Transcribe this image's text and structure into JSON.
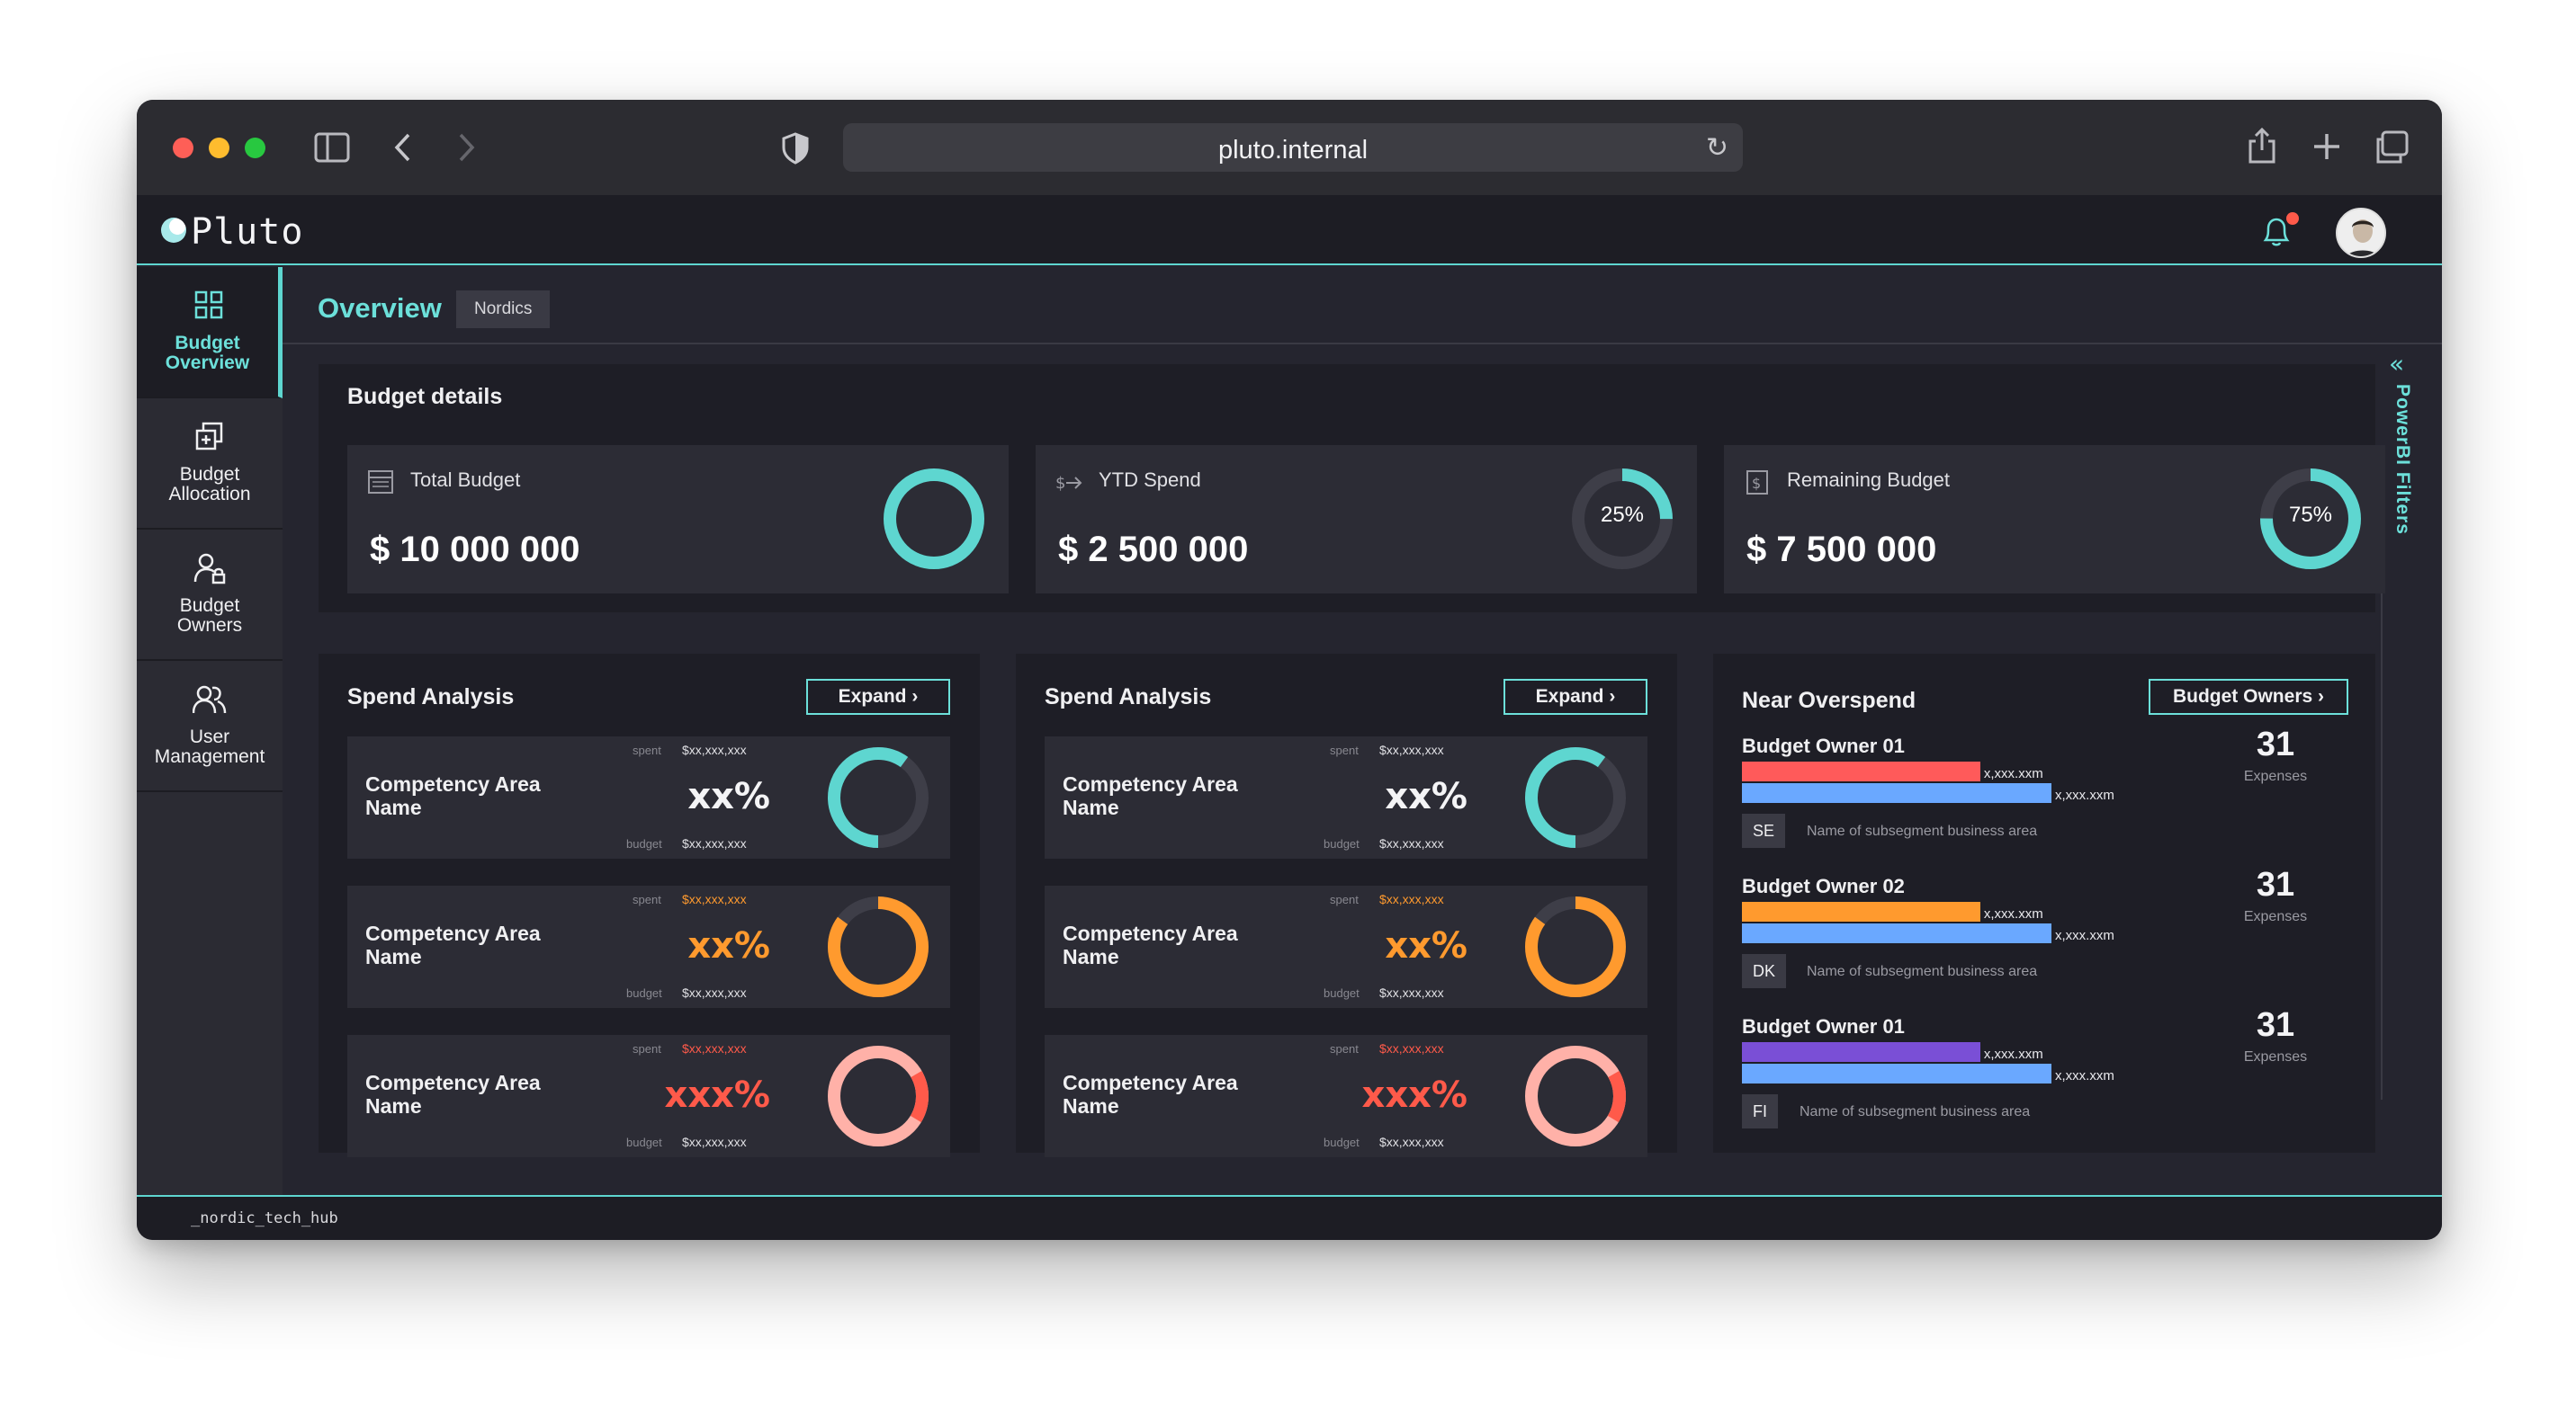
{
  "browser": {
    "url": "pluto.internal",
    "icons": [
      "sidebar-toggle-icon",
      "back-icon",
      "forward-icon",
      "shield-icon",
      "reload-icon",
      "share-icon",
      "new-tab-icon",
      "tabs-icon"
    ]
  },
  "app": {
    "name": "Pluto",
    "footer": "_nordic_tech_hub",
    "notification_dot_color": "#ff5a4a"
  },
  "sidebar": {
    "items": [
      {
        "label": "Budget\nOverview",
        "icon": "grid-icon",
        "active": true
      },
      {
        "label": "Budget\nAllocation",
        "icon": "stack-icon",
        "active": false
      },
      {
        "label": "Budget\nOwners",
        "icon": "user-lock-icon",
        "active": false
      },
      {
        "label": "User\nManagement",
        "icon": "users-icon",
        "active": false
      }
    ]
  },
  "page": {
    "title": "Overview",
    "region": "Nordics",
    "filters_label": "PowerBI Filters"
  },
  "budget_details": {
    "title": "Budget details",
    "kpis": [
      {
        "label": "Total Budget",
        "value": "$ 10 000 000",
        "ring_fraction": 1.0,
        "pct_label": ""
      },
      {
        "label": "YTD Spend",
        "value": "$ 2 500 000",
        "ring_fraction": 0.25,
        "pct_label": "25%"
      },
      {
        "label": "Remaining Budget",
        "value": "$ 7 500 000",
        "ring_fraction": 0.75,
        "pct_label": "75%"
      }
    ]
  },
  "spend_analysis": [
    {
      "title": "Spend Analysis",
      "expand_label": "Expand",
      "rows": [
        {
          "name": "Competency Area\nName",
          "pct": "xx%",
          "spent_label": "spent",
          "spent": "$xx,xxx,xxx",
          "budget_label": "budget",
          "budget": "$xx,xxx,xxx",
          "fraction": 0.6,
          "color": "#5ed6d0",
          "pct_color": "#f4f4f6",
          "spent_color": "#e0e0e4"
        },
        {
          "name": "Competency Area\nName",
          "pct": "xx%",
          "spent_label": "spent",
          "spent": "$xx,xxx,xxx",
          "budget_label": "budget",
          "budget": "$xx,xxx,xxx",
          "fraction": 0.85,
          "color": "#ff9a2e",
          "pct_color": "#ff9a2e",
          "spent_color": "#ff9a2e"
        },
        {
          "name": "Competency Area\nName",
          "pct": "xxx%",
          "spent_label": "spent",
          "spent": "$xx,xxx,xxx",
          "budget_label": "budget",
          "budget": "$xx,xxx,xxx",
          "fraction": 1.0,
          "color": "#ffb1a8",
          "overflow_color": "#ff5a4a",
          "pct_color": "#ff5a4a",
          "spent_color": "#ff5a4a"
        }
      ]
    },
    {
      "title": "Spend Analysis",
      "expand_label": "Expand",
      "rows": [
        {
          "name": "Competency Area\nName",
          "pct": "xx%",
          "spent_label": "spent",
          "spent": "$xx,xxx,xxx",
          "budget_label": "budget",
          "budget": "$xx,xxx,xxx",
          "fraction": 0.6,
          "color": "#5ed6d0",
          "pct_color": "#f4f4f6",
          "spent_color": "#e0e0e4"
        },
        {
          "name": "Competency Area\nName",
          "pct": "xx%",
          "spent_label": "spent",
          "spent": "$xx,xxx,xxx",
          "budget_label": "budget",
          "budget": "$xx,xxx,xxx",
          "fraction": 0.85,
          "color": "#ff9a2e",
          "pct_color": "#ff9a2e",
          "spent_color": "#ff9a2e"
        },
        {
          "name": "Competency Area\nName",
          "pct": "xxx%",
          "spent_label": "spent",
          "spent": "$xx,xxx,xxx",
          "budget_label": "budget",
          "budget": "$xx,xxx,xxx",
          "fraction": 1.0,
          "color": "#ffb1a8",
          "overflow_color": "#ff5a4a",
          "pct_color": "#ff5a4a",
          "spent_color": "#ff5a4a"
        }
      ]
    }
  ],
  "near_overspend": {
    "title": "Near Overspend",
    "button_label": "Budget Owners",
    "owners": [
      {
        "name": "Budget Owner 01",
        "spent_label": "x,xxx.xxm",
        "budget_label": "x,xxx.xxm",
        "spent_fraction": 0.77,
        "spent_color": "#ff5a5a",
        "budget_color": "#6aa8ff",
        "count": "31",
        "count_label": "Expenses",
        "segment": "SE",
        "segment_text": "Name of subsegment business area"
      },
      {
        "name": "Budget Owner 02",
        "spent_label": "x,xxx.xxm",
        "budget_label": "x,xxx.xxm",
        "spent_fraction": 0.77,
        "spent_color": "#ff9a2e",
        "budget_color": "#6aa8ff",
        "count": "31",
        "count_label": "Expenses",
        "segment": "DK",
        "segment_text": "Name of subsegment business area"
      },
      {
        "name": "Budget Owner 01",
        "spent_label": "x,xxx.xxm",
        "budget_label": "x,xxx.xxm",
        "spent_fraction": 0.77,
        "spent_color": "#7a4fd6",
        "budget_color": "#6aa8ff",
        "count": "31",
        "count_label": "Expenses",
        "segment": "FI",
        "segment_text": "Name of subsegment business area"
      }
    ]
  }
}
